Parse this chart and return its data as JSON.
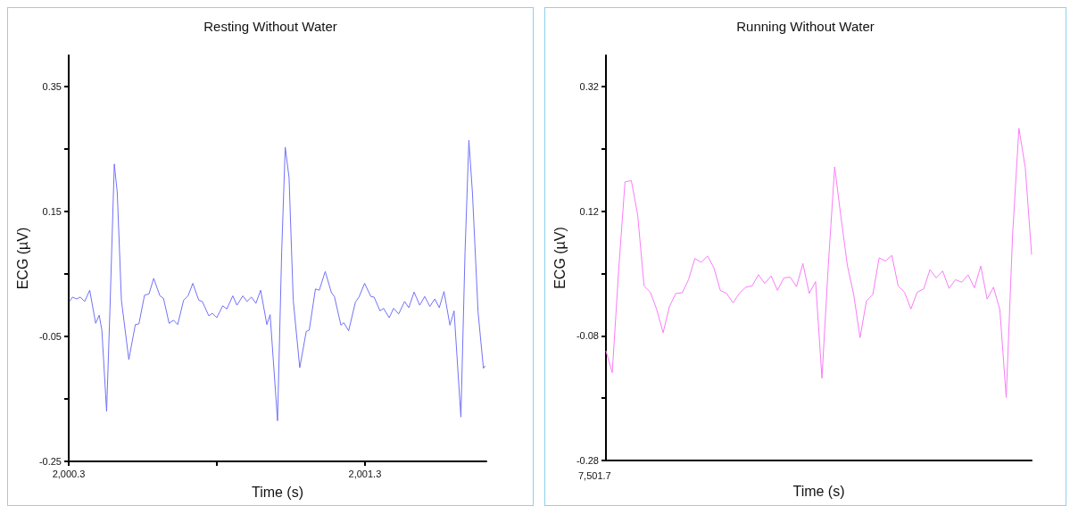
{
  "chart_data": [
    {
      "type": "line",
      "title": "Resting Without Water",
      "xlabel": "Time (s)",
      "ylabel": "ECG (µV)",
      "color": "#7272f8",
      "marker": "none",
      "xlim": [
        2000.3,
        2001.71
      ],
      "xticks": [
        {
          "value": 2000.3,
          "label": "2,000.3"
        },
        {
          "value": 2000.8,
          "label": null
        },
        {
          "value": 2001.3,
          "label": "2,001.3"
        }
      ],
      "ylim": [
        -0.25,
        0.4
      ],
      "yticks": [
        -0.25,
        {
          "value": -0.15,
          "label": null
        },
        -0.05,
        {
          "value": 0.05,
          "label": null
        },
        0.15,
        {
          "value": 0.25,
          "label": null
        },
        0.35
      ],
      "x": [
        2000.303,
        2000.313,
        2000.327,
        2000.339,
        2000.354,
        2000.371,
        2000.391,
        2000.403,
        2000.412,
        2000.428,
        2000.439,
        2000.454,
        2000.464,
        2000.478,
        2000.503,
        2000.525,
        2000.537,
        2000.556,
        2000.571,
        2000.587,
        2000.608,
        2000.62,
        2000.639,
        2000.654,
        2000.668,
        2000.688,
        2000.703,
        2000.719,
        2000.739,
        2000.751,
        2000.773,
        2000.785,
        2000.8,
        2000.82,
        2000.834,
        2000.854,
        2000.868,
        2000.888,
        2000.902,
        2000.917,
        2000.932,
        2000.948,
        2000.969,
        2000.98,
        2001.005,
        2001.019,
        2001.031,
        2001.044,
        2001.058,
        2001.08,
        2001.102,
        2001.112,
        2001.133,
        2001.146,
        2001.166,
        2001.187,
        2001.197,
        2001.219,
        2001.229,
        2001.245,
        2001.268,
        2001.28,
        2001.299,
        2001.32,
        2001.331,
        2001.351,
        2001.363,
        2001.382,
        2001.397,
        2001.414,
        2001.434,
        2001.448,
        2001.466,
        2001.485,
        2001.502,
        2001.519,
        2001.536,
        2001.551,
        2001.567,
        2001.587,
        2001.601,
        2001.624,
        2001.638,
        2001.651,
        2001.663,
        2001.682,
        2001.7,
        2001.706
      ],
      "values": [
        0.006,
        0.013,
        0.01,
        0.013,
        0.006,
        0.024,
        -0.029,
        -0.016,
        -0.04,
        -0.17,
        -0.011,
        0.226,
        0.18,
        0.008,
        -0.087,
        -0.031,
        -0.03,
        0.016,
        0.018,
        0.043,
        0.015,
        0.011,
        -0.029,
        -0.024,
        -0.031,
        0.008,
        0.015,
        0.035,
        0.008,
        0.006,
        -0.017,
        -0.013,
        -0.02,
        -0.001,
        -0.006,
        0.015,
        0.0,
        0.015,
        0.006,
        0.013,
        0.003,
        0.024,
        -0.031,
        -0.015,
        -0.185,
        0.085,
        0.253,
        0.204,
        0.008,
        -0.1,
        -0.042,
        -0.04,
        0.026,
        0.024,
        0.054,
        0.02,
        0.014,
        -0.032,
        -0.028,
        -0.041,
        0.005,
        0.013,
        0.035,
        0.014,
        0.013,
        -0.009,
        -0.005,
        -0.02,
        -0.005,
        -0.014,
        0.006,
        -0.004,
        0.021,
        0.0,
        0.014,
        -0.002,
        0.01,
        -0.004,
        0.022,
        -0.032,
        -0.009,
        -0.179,
        0.085,
        0.264,
        0.18,
        -0.011,
        -0.101,
        -0.097
      ]
    },
    {
      "type": "line",
      "title": "Running Without Water",
      "xlabel": "Time (s)",
      "ylabel": "ECG (µV)",
      "color": "#f97cf9",
      "marker": "none",
      "annotations": [
        "7,501.7"
      ],
      "ylim": [
        -0.28,
        0.37
      ],
      "yticks": [
        -0.28,
        {
          "value": -0.18,
          "label": null
        },
        -0.08,
        {
          "value": 0.02,
          "label": null
        },
        0.12,
        {
          "value": 0.22,
          "label": null
        },
        0.32
      ],
      "categories": [
        null,
        null,
        null,
        null,
        null,
        null,
        null,
        null,
        null,
        null,
        null,
        null,
        null,
        null,
        null,
        null,
        null,
        null,
        null,
        null,
        null,
        null,
        null,
        null,
        null,
        null,
        null,
        null,
        null,
        null,
        null,
        null,
        null,
        null,
        null,
        null,
        null,
        null,
        null,
        null,
        null,
        null,
        null,
        null,
        null,
        null,
        null,
        null,
        null,
        null,
        null,
        null,
        null,
        null,
        null,
        null,
        null,
        null,
        null,
        null,
        null,
        null,
        null,
        null,
        null,
        null,
        null,
        null
      ],
      "values": [
        -0.104,
        -0.139,
        0.024,
        0.167,
        0.169,
        0.114,
        0.0,
        -0.01,
        -0.038,
        -0.075,
        -0.033,
        -0.012,
        -0.011,
        0.01,
        0.044,
        0.038,
        0.048,
        0.029,
        -0.007,
        -0.012,
        -0.027,
        -0.012,
        -0.002,
        0.0,
        0.018,
        0.004,
        0.016,
        -0.007,
        0.013,
        0.014,
        -0.001,
        0.036,
        -0.012,
        0.007,
        -0.148,
        0.033,
        0.191,
        0.11,
        0.033,
        -0.014,
        -0.083,
        -0.024,
        -0.014,
        0.045,
        0.04,
        0.049,
        0.0,
        -0.01,
        -0.037,
        -0.01,
        -0.005,
        0.026,
        0.013,
        0.024,
        -0.004,
        0.01,
        0.006,
        0.018,
        -0.003,
        0.032,
        -0.021,
        -0.002,
        -0.038,
        -0.179,
        0.081,
        0.253,
        0.19,
        0.05
      ]
    }
  ]
}
